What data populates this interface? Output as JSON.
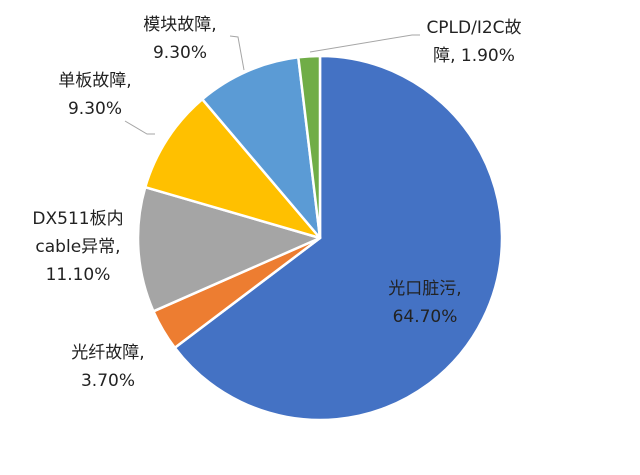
{
  "chart_data": {
    "type": "pie",
    "title": "",
    "start_angle_deg": 0,
    "direction": "clockwise",
    "slices": [
      {
        "label_lines": [
          "光口脏污,",
          "64.70%"
        ],
        "category": "光口脏污",
        "value": 64.7,
        "value_label": "64.70%",
        "color": "#4472C4"
      },
      {
        "label_lines": [
          "光纤故障,",
          "3.70%"
        ],
        "category": "光纤故障",
        "value": 3.7,
        "value_label": "3.70%",
        "color": "#ED7D31"
      },
      {
        "label_lines": [
          "DX511板内",
          "cable异常,",
          "11.10%"
        ],
        "category": "DX511板内cable异常",
        "value": 11.1,
        "value_label": "11.10%",
        "color": "#A5A5A5"
      },
      {
        "label_lines": [
          "单板故障,",
          "9.30%"
        ],
        "category": "单板故障",
        "value": 9.3,
        "value_label": "9.30%",
        "color": "#FFC000"
      },
      {
        "label_lines": [
          "模块故障,",
          "9.30%"
        ],
        "category": "模块故障",
        "value": 9.3,
        "value_label": "9.30%",
        "color": "#5B9BD5"
      },
      {
        "label_lines": [
          "CPLD/I2C故",
          "障, 1.90%"
        ],
        "category": "CPLD/I2C故障",
        "value": 1.9,
        "value_label": "1.90%",
        "color": "#70AD47"
      }
    ]
  }
}
